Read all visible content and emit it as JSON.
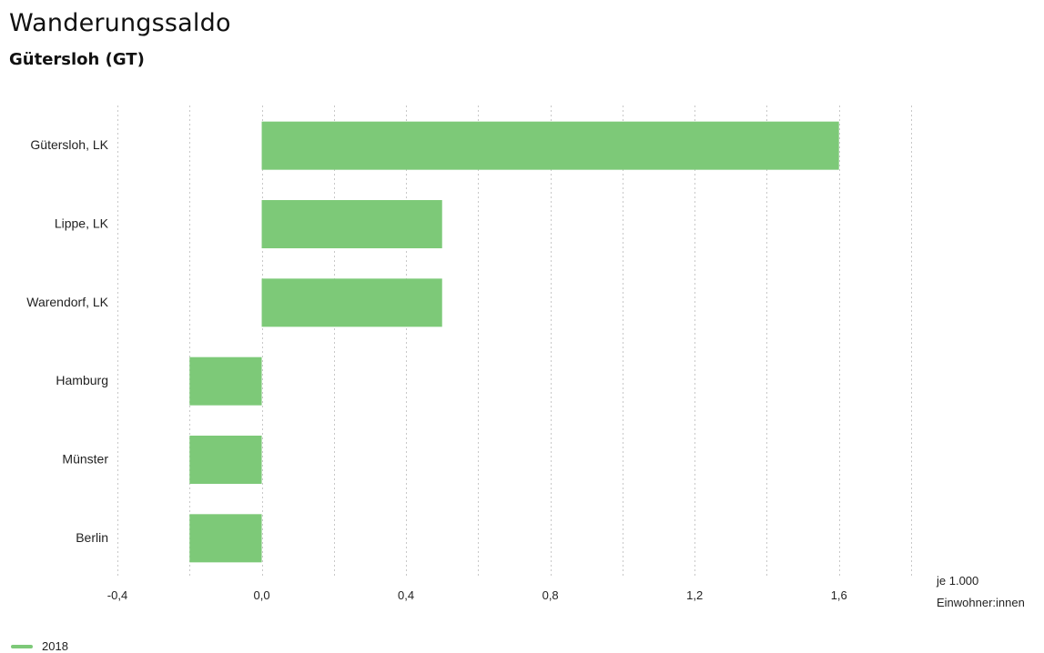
{
  "header": {
    "title": "Wanderungssaldo",
    "subtitle": "Gütersloh (GT)"
  },
  "colors": {
    "bar": "#7dc978",
    "grid": "#c8c8c8",
    "text": "#222222"
  },
  "chart_data": {
    "type": "bar",
    "orientation": "horizontal",
    "categories": [
      "Gütersloh, LK",
      "Lippe, LK",
      "Warendorf, LK",
      "Hamburg",
      "Münster",
      "Berlin"
    ],
    "series": [
      {
        "name": "2018",
        "values": [
          1.6,
          0.5,
          0.5,
          -0.2,
          -0.2,
          -0.2
        ]
      }
    ],
    "xlim": [
      -0.4,
      1.8
    ],
    "ticks": [
      -0.4,
      0.0,
      0.4,
      0.8,
      1.2,
      1.6
    ],
    "tick_labels": [
      "-0,4",
      "0,0",
      "0,4",
      "0,8",
      "1,2",
      "1,6"
    ],
    "gridlines": [
      -0.4,
      -0.2,
      0.0,
      0.2,
      0.4,
      0.6,
      0.8,
      1.0,
      1.2,
      1.4,
      1.6,
      1.8
    ],
    "grid": true,
    "unit_label": [
      "je 1.000",
      "Einwohner:innen"
    ],
    "legend_position": "bottom-left"
  }
}
